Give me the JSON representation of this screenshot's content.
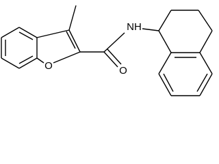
{
  "atoms": [
    {
      "label": "O"
    },
    {
      "label": "O"
    },
    {
      "label": "NH"
    }
  ]
}
